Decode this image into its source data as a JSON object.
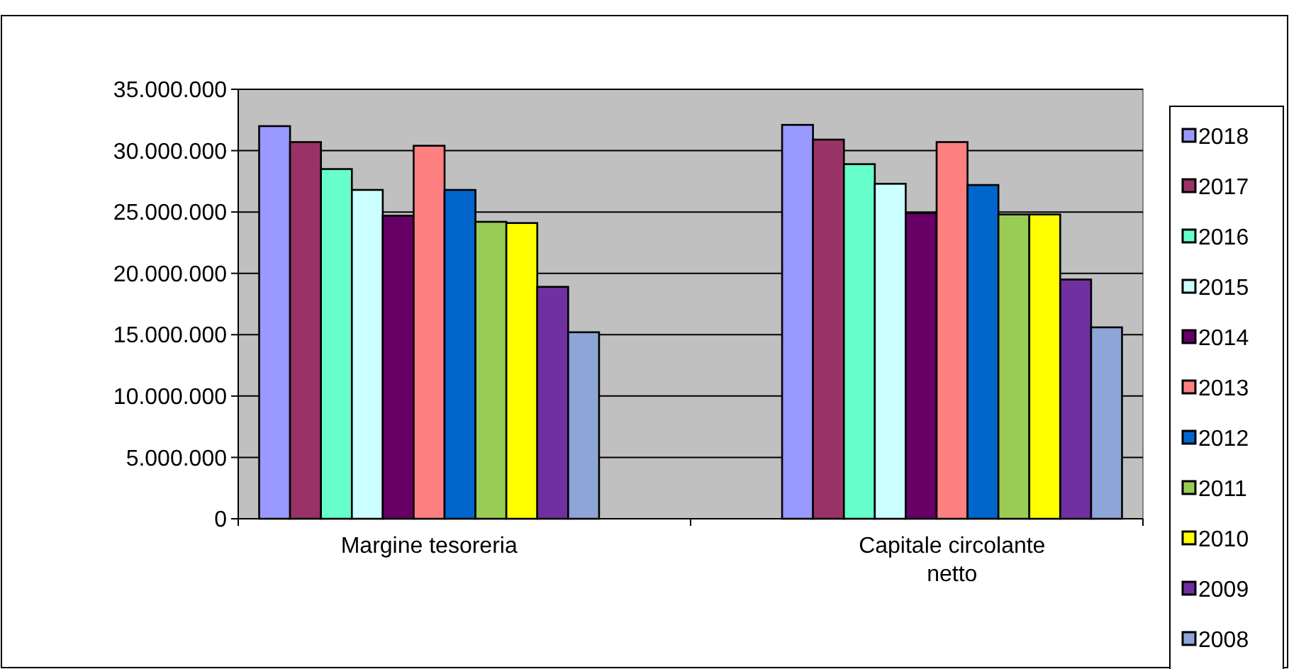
{
  "chart_data": {
    "type": "bar",
    "categories": [
      "Margine tesoreria",
      "Capitale circolante netto"
    ],
    "series": [
      {
        "name": "2018",
        "color": "#9999ff",
        "values": [
          32000000,
          32100000
        ]
      },
      {
        "name": "2017",
        "color": "#993366",
        "values": [
          30700000,
          30900000
        ]
      },
      {
        "name": "2016",
        "color": "#66ffcc",
        "values": [
          28500000,
          28900000
        ]
      },
      {
        "name": "2015",
        "color": "#ccffff",
        "values": [
          26800000,
          27300000
        ]
      },
      {
        "name": "2014",
        "color": "#660066",
        "values": [
          24700000,
          24900000
        ]
      },
      {
        "name": "2013",
        "color": "#ff8080",
        "values": [
          30400000,
          30700000
        ]
      },
      {
        "name": "2012",
        "color": "#0066cc",
        "values": [
          26800000,
          27200000
        ]
      },
      {
        "name": "2011",
        "color": "#99cc55",
        "values": [
          24200000,
          24800000
        ]
      },
      {
        "name": "2010",
        "color": "#ffff00",
        "values": [
          24100000,
          24800000
        ]
      },
      {
        "name": "2009",
        "color": "#7030a0",
        "values": [
          18900000,
          19500000
        ]
      },
      {
        "name": "2008",
        "color": "#8ea5d8",
        "values": [
          15200000,
          15600000
        ]
      }
    ],
    "ylim": [
      0,
      35000000
    ],
    "yticks": [
      {
        "value": 0,
        "label": "0"
      },
      {
        "value": 5000000,
        "label": "5.000.000"
      },
      {
        "value": 10000000,
        "label": "10.000.000"
      },
      {
        "value": 15000000,
        "label": "15.000.000"
      },
      {
        "value": 20000000,
        "label": "20.000.000"
      },
      {
        "value": 25000000,
        "label": "25.000.000"
      },
      {
        "value": 30000000,
        "label": "30.000.000"
      },
      {
        "value": 35000000,
        "label": "35.000.000"
      }
    ],
    "grid": "y",
    "legend": "right"
  }
}
